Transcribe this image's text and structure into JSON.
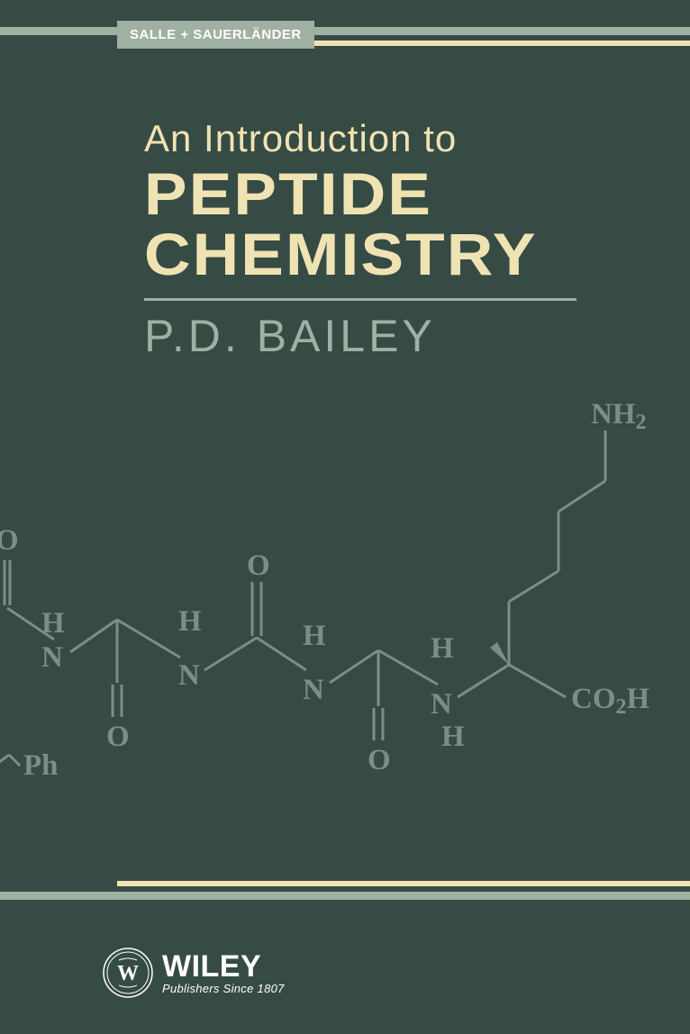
{
  "colors": {
    "background": "#364b44",
    "sage": "#a0b0a2",
    "cream": "#f0e3b3",
    "molecule": "#7c8e85",
    "white": "#ffffff"
  },
  "badge": "SALLE + SAUERLÄNDER",
  "title": {
    "subtitle": "An Introduction to",
    "line1": "PEPTIDE",
    "line2": "CHEMISTRY"
  },
  "author": "P.D. BAILEY",
  "publisher": {
    "name": "WILEY",
    "tagline": "Publishers Since 1807"
  },
  "molecule": {
    "labels": {
      "nh2": "NH",
      "nh2_sub": "2",
      "co2h": "CO",
      "co2h_sub": "2",
      "co2h_end": "H",
      "o": "O",
      "h": "H",
      "n": "N",
      "ph": "Ph"
    },
    "stroke_width": 3
  }
}
